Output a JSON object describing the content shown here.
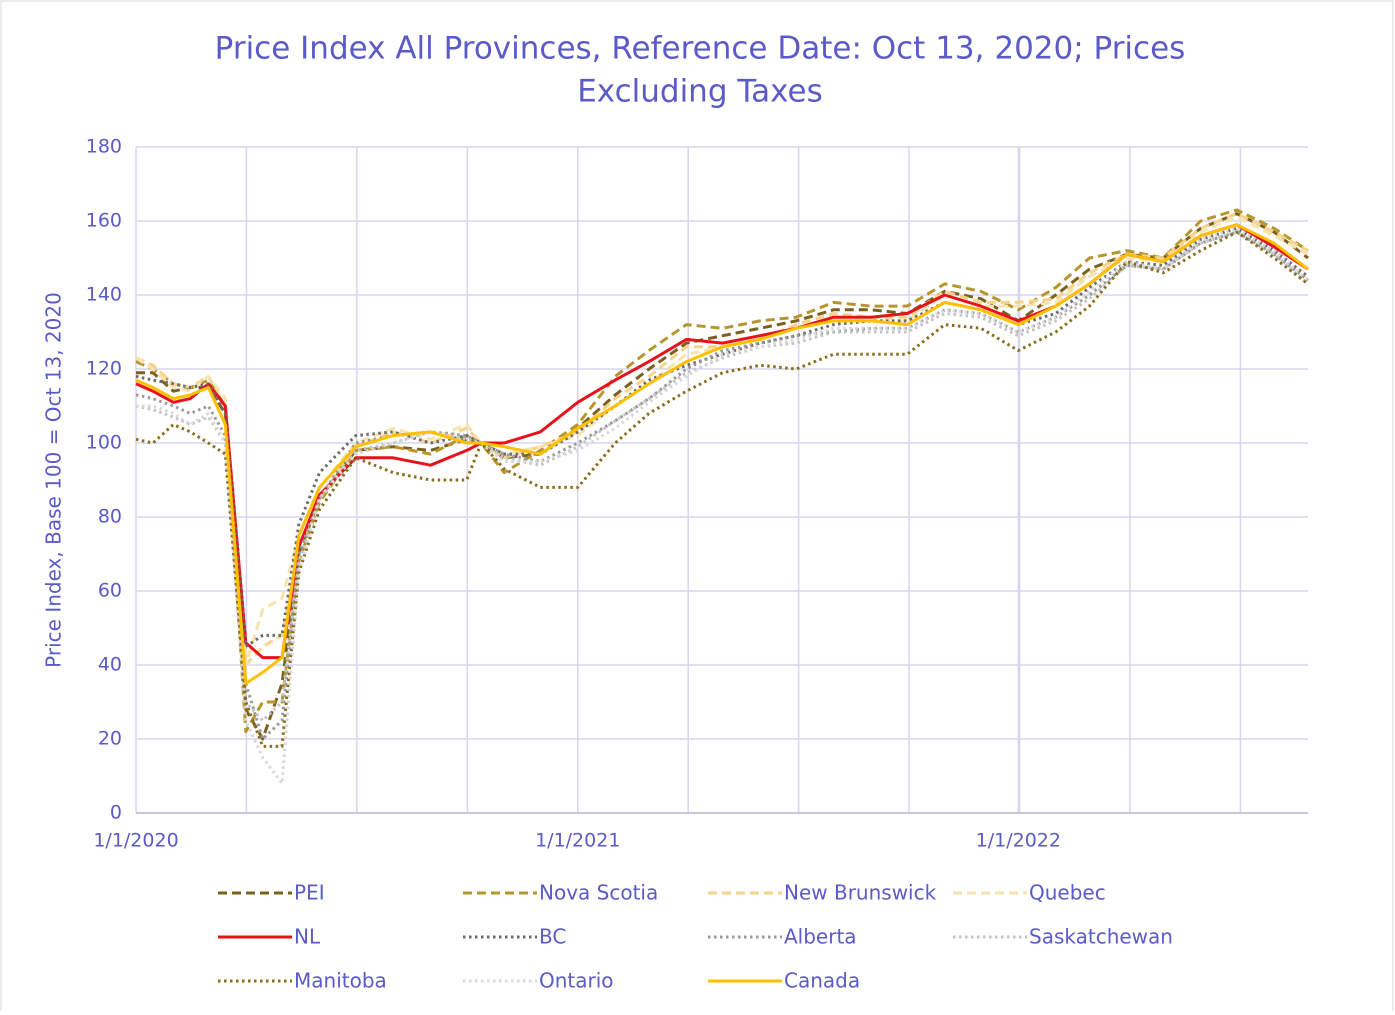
{
  "chart_data": {
    "type": "line",
    "title": [
      "Price Index All Provinces, Reference Date: Oct 13, 2020; Prices",
      "Excluding Taxes"
    ],
    "y_label": "Price Index, Base 100 = Oct 13, 2020",
    "x": [
      "2020-01-01",
      "2020-01-15",
      "2020-02-01",
      "2020-02-15",
      "2020-03-01",
      "2020-03-15",
      "2020-04-01",
      "2020-04-15",
      "2020-05-01",
      "2020-05-15",
      "2020-06-01",
      "2020-07-01",
      "2020-08-01",
      "2020-09-01",
      "2020-10-01",
      "2020-10-13",
      "2020-11-01",
      "2020-12-01",
      "2021-01-01",
      "2021-02-01",
      "2021-03-01",
      "2021-04-01",
      "2021-05-01",
      "2021-06-01",
      "2021-07-01",
      "2021-08-01",
      "2021-09-01",
      "2021-10-01",
      "2021-11-01",
      "2021-12-01",
      "2022-01-01",
      "2022-02-01",
      "2022-03-01",
      "2022-04-01",
      "2022-05-01",
      "2022-06-01",
      "2022-07-01",
      "2022-08-01",
      "2022-08-29"
    ],
    "xlim": [
      "2020-01-01",
      "2022-08-29"
    ],
    "xticks": [
      {
        "value": "2020-01-01",
        "label": "1/1/2020"
      },
      {
        "value": "2021-01-01",
        "label": "1/1/2021"
      },
      {
        "value": "2022-01-01",
        "label": "1/1/2022"
      }
    ],
    "ylim": [
      0,
      180
    ],
    "yticks": [
      0,
      20,
      40,
      60,
      80,
      100,
      120,
      140,
      160,
      180
    ],
    "grid": true,
    "legend": "bottom",
    "series": [
      {
        "name": "PEI",
        "color": "#7a6120",
        "dash": "dashed",
        "values": [
          119,
          119,
          114,
          115,
          115,
          108,
          28,
          20,
          35,
          70,
          85,
          98,
          99,
          98,
          101,
          100,
          96,
          97,
          104,
          113,
          120,
          127,
          129,
          131,
          133,
          136,
          136,
          135,
          141,
          139,
          133,
          140,
          147,
          151,
          150,
          158,
          162,
          157,
          150
        ]
      },
      {
        "name": "Nova Scotia",
        "color": "#b8962e",
        "dash": "dashed",
        "values": [
          122,
          120,
          116,
          115,
          117,
          110,
          22,
          30,
          30,
          68,
          84,
          98,
          99,
          97,
          102,
          100,
          92,
          98,
          105,
          118,
          125,
          132,
          131,
          133,
          134,
          138,
          137,
          137,
          143,
          141,
          136,
          142,
          150,
          152,
          150,
          160,
          163,
          158,
          152
        ]
      },
      {
        "name": "New Brunswick",
        "color": "#f7d38a",
        "dash": "dashed",
        "values": [
          123,
          121,
          116,
          115,
          118,
          110,
          40,
          45,
          48,
          72,
          85,
          99,
          103,
          100,
          104,
          100,
          96,
          99,
          103,
          112,
          118,
          126,
          126,
          128,
          132,
          135,
          134,
          134,
          141,
          138,
          138,
          139,
          146,
          151,
          150,
          158,
          162,
          157,
          152
        ]
      },
      {
        "name": "Quebec",
        "color": "#f5e3b0",
        "dash": "dashed",
        "values": [
          123,
          120,
          115,
          114,
          118,
          112,
          40,
          55,
          58,
          75,
          88,
          100,
          104,
          101,
          105,
          100,
          97,
          99,
          102,
          110,
          116,
          124,
          126,
          128,
          131,
          133,
          133,
          133,
          140,
          137,
          137,
          138,
          145,
          150,
          149,
          157,
          161,
          156,
          151
        ]
      },
      {
        "name": "NL",
        "color": "#e8121a",
        "dash": "solid",
        "values": [
          116,
          114,
          111,
          112,
          116,
          110,
          46,
          42,
          42,
          72,
          86,
          96,
          96,
          94,
          98,
          100,
          100,
          103,
          111,
          117,
          122,
          128,
          127,
          129,
          131,
          134,
          134,
          135,
          140,
          137,
          133,
          137,
          143,
          151,
          149,
          156,
          159,
          153,
          147
        ]
      },
      {
        "name": "BC",
        "color": "#6b6b6b",
        "dash": "dotted",
        "values": [
          118,
          117,
          116,
          115,
          116,
          108,
          45,
          48,
          48,
          78,
          92,
          102,
          103,
          100,
          102,
          100,
          97,
          97,
          103,
          110,
          117,
          121,
          124,
          127,
          129,
          132,
          133,
          133,
          138,
          136,
          132,
          135,
          142,
          149,
          148,
          155,
          158,
          152,
          145
        ]
      },
      {
        "name": "Alberta",
        "color": "#9a9a9a",
        "dash": "dotted",
        "values": [
          113,
          112,
          110,
          108,
          110,
          102,
          35,
          20,
          25,
          70,
          85,
          100,
          102,
          103,
          102,
          100,
          97,
          95,
          100,
          106,
          112,
          120,
          125,
          127,
          129,
          130,
          131,
          131,
          136,
          135,
          130,
          134,
          140,
          148,
          147,
          154,
          157,
          151,
          144
        ]
      },
      {
        "name": "Saskatchewan",
        "color": "#c4c4c4",
        "dash": "dotted",
        "values": [
          110,
          109,
          107,
          105,
          107,
          100,
          30,
          25,
          30,
          68,
          85,
          98,
          100,
          103,
          101,
          100,
          96,
          94,
          99,
          106,
          112,
          119,
          123,
          126,
          127,
          130,
          130,
          130,
          135,
          134,
          129,
          133,
          139,
          148,
          147,
          154,
          157,
          151,
          143
        ]
      },
      {
        "name": "Manitoba",
        "color": "#8a6d1a",
        "dash": "dotted",
        "values": [
          101,
          100,
          105,
          103,
          100,
          97,
          30,
          18,
          18,
          65,
          82,
          96,
          92,
          90,
          90,
          100,
          93,
          88,
          88,
          100,
          108,
          114,
          119,
          121,
          120,
          124,
          124,
          124,
          132,
          131,
          125,
          130,
          137,
          149,
          146,
          152,
          157,
          150,
          143
        ]
      },
      {
        "name": "Ontario",
        "color": "#d8d8d8",
        "dash": "dotted",
        "values": [
          110,
          110,
          108,
          105,
          108,
          100,
          25,
          15,
          8,
          65,
          85,
          97,
          100,
          103,
          100,
          100,
          95,
          95,
          98,
          104,
          111,
          118,
          124,
          126,
          128,
          131,
          131,
          131,
          136,
          135,
          130,
          134,
          141,
          149,
          147,
          155,
          158,
          152,
          144
        ]
      },
      {
        "name": "Canada",
        "color": "#ffc000",
        "dash": "solid",
        "values": [
          117,
          115,
          112,
          113,
          115,
          105,
          35,
          38,
          42,
          75,
          88,
          99,
          102,
          103,
          100,
          100,
          99,
          97,
          104,
          110,
          116,
          122,
          126,
          128,
          131,
          133,
          133,
          132,
          138,
          136,
          132,
          137,
          143,
          151,
          149,
          156,
          159,
          154,
          147
        ]
      }
    ]
  }
}
